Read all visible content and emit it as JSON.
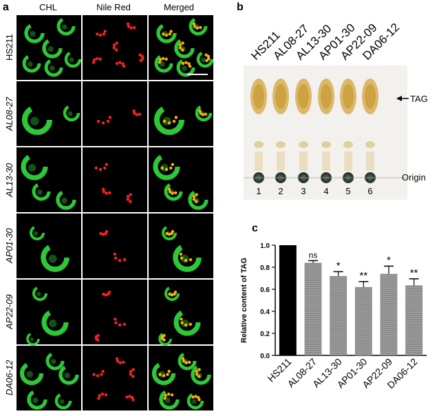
{
  "panel_a": {
    "letter": "a",
    "columns": [
      "CHL",
      "Nile Red",
      "Merged"
    ],
    "rows": [
      {
        "label": "HS211",
        "italic": false
      },
      {
        "label": "AL08-27",
        "italic": true
      },
      {
        "label": "AL13-30",
        "italic": true
      },
      {
        "label": "AP01-30",
        "italic": true
      },
      {
        "label": "AP22-09",
        "italic": true
      },
      {
        "label": "DA06-12",
        "italic": true
      }
    ]
  },
  "panel_b": {
    "letter": "b",
    "strains": [
      "HS211",
      "AL08-27",
      "AL13-30",
      "AP01-30",
      "AP22-09",
      "DA06-12"
    ],
    "lane_numbers": [
      "1",
      "2",
      "3",
      "4",
      "5",
      "6"
    ],
    "tag_label": "TAG",
    "origin_label": "Origin"
  },
  "panel_c": {
    "letter": "c"
  },
  "chart_data": {
    "type": "bar",
    "categories": [
      "HS211",
      "AL08-27",
      "AL13-30",
      "AP01-30",
      "AP22-09",
      "DA06-12"
    ],
    "values": [
      1.0,
      0.84,
      0.72,
      0.62,
      0.74,
      0.635
    ],
    "errors": [
      0.0,
      0.02,
      0.04,
      0.05,
      0.07,
      0.06
    ],
    "significance": [
      "",
      "ns",
      "*",
      "**",
      "*",
      "**"
    ],
    "colors": [
      "#000000",
      "#8c8c8c",
      "#8c8c8c",
      "#8c8c8c",
      "#8c8c8c",
      "#8c8c8c"
    ],
    "ylabel": "Relative content of TAG",
    "ylim": [
      0,
      1.0
    ],
    "yticks": [
      "0.0",
      "0.2",
      "0.4",
      "0.6",
      "0.8",
      "1.0"
    ]
  }
}
